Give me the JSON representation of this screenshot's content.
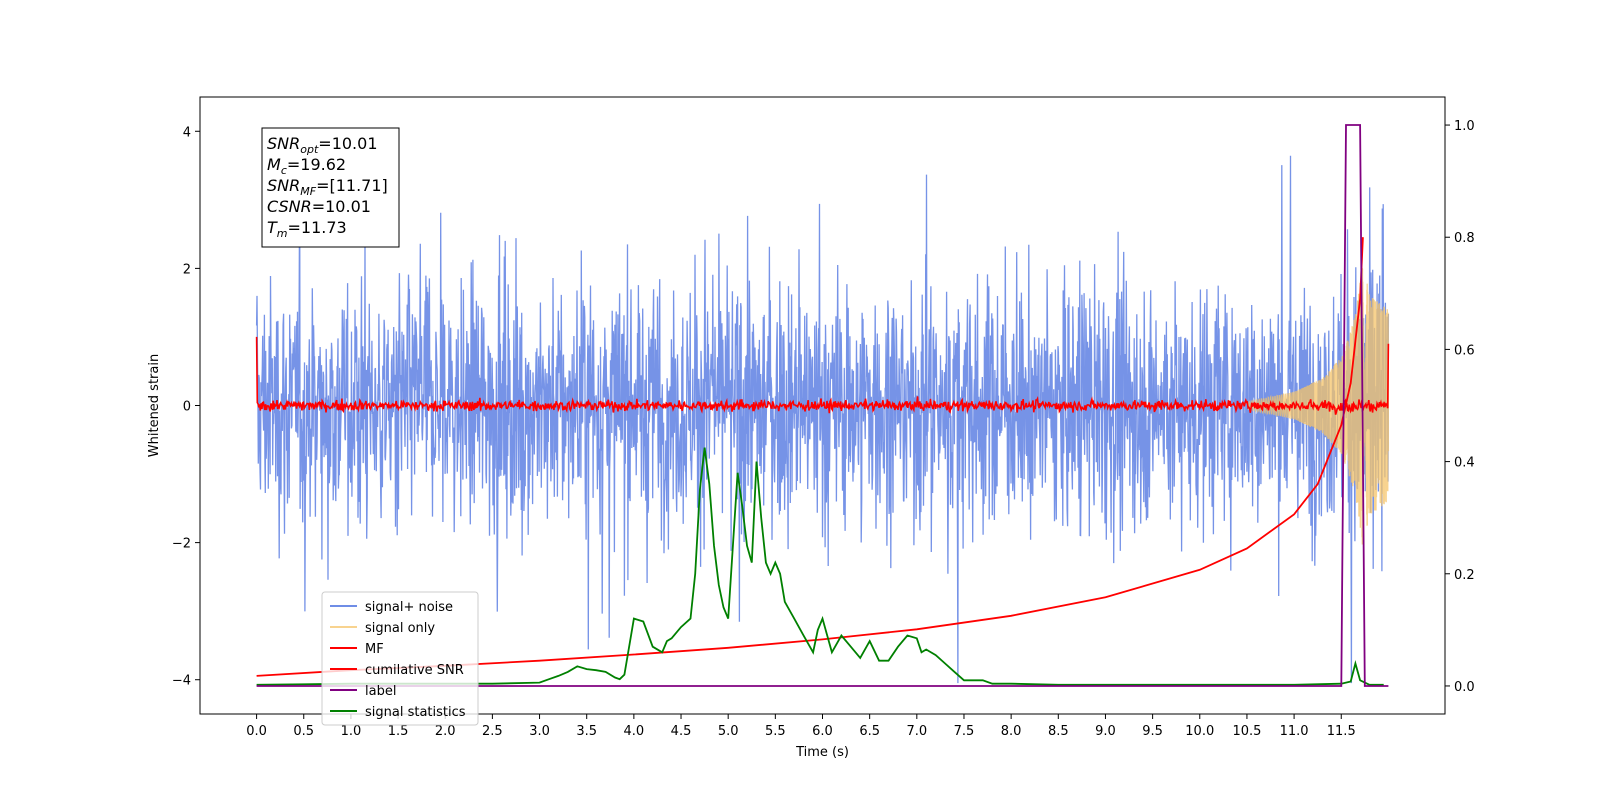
{
  "chart_data": {
    "type": "line",
    "xlabel": "Time (s)",
    "ylabel": "Whitened strain",
    "xlim": [
      -0.6,
      12.6
    ],
    "ylim": [
      -4.5,
      4.5
    ],
    "y2lim": [
      -0.05,
      1.05
    ],
    "x_ticks": [
      0.0,
      0.5,
      1.0,
      1.5,
      2.0,
      2.5,
      3.0,
      3.5,
      4.0,
      4.5,
      5.0,
      5.5,
      6.0,
      6.5,
      7.0,
      7.5,
      8.0,
      8.5,
      9.0,
      9.5,
      10.0,
      10.5,
      11.0,
      11.5
    ],
    "x_tick_labels": [
      "0.0",
      "0.5",
      "1.0",
      "1.5",
      "2.0",
      "2.5",
      "3.0",
      "3.5",
      "4.0",
      "4.5",
      "5.0",
      "5.5",
      "6.0",
      "6.5",
      "7.0",
      "7.5",
      "8.0",
      "8.5",
      "9.0",
      "9.5",
      "10.0",
      "10.5",
      "11.0",
      "11.5"
    ],
    "y_ticks": [
      -4,
      -2,
      0,
      2,
      4
    ],
    "y_tick_labels": [
      "−4",
      "−2",
      "0",
      "2",
      "4"
    ],
    "y2_ticks": [
      0.0,
      0.2,
      0.4,
      0.6,
      0.8,
      1.0
    ],
    "y2_tick_labels": [
      "0.0",
      "0.2",
      "0.4",
      "0.6",
      "0.8",
      "1.0"
    ],
    "grid": false,
    "legend_position": "lower-left",
    "annotations": {
      "snr_opt": "10.01",
      "mc": "19.62",
      "snr_mf": "[11.71]",
      "csnr": "10.01",
      "tm": "11.73"
    },
    "series": [
      {
        "name": "signal+ noise",
        "axis": "left",
        "color": "#6f8de6",
        "style": "dense noise band, approx ±2 with spikes to ±4",
        "x_range": [
          0.0,
          12.0
        ],
        "envelope": [
          [
            0.0,
            2.0
          ],
          [
            11.5,
            2.0
          ],
          [
            11.65,
            2.7
          ],
          [
            12.0,
            2.5
          ]
        ]
      },
      {
        "name": "signal only",
        "axis": "left",
        "color": "#f5c46a",
        "envelope": [
          [
            10.5,
            0.05
          ],
          [
            11.0,
            0.2
          ],
          [
            11.3,
            0.4
          ],
          [
            11.5,
            0.7
          ],
          [
            11.65,
            1.3
          ],
          [
            11.73,
            2.1
          ],
          [
            11.8,
            1.6
          ],
          [
            12.0,
            1.4
          ]
        ]
      },
      {
        "name": "MF",
        "axis": "left",
        "color": "#ff0000",
        "style": "noisy band near 0, approx ±0.2",
        "x_range": [
          0.0,
          12.0
        ],
        "endpoints": [
          [
            0.0,
            1.0
          ],
          [
            12.0,
            0.9
          ]
        ]
      },
      {
        "name": "cumilative SNR",
        "axis": "right",
        "color": "#ff0000",
        "x": [
          0.0,
          1.0,
          2.0,
          3.0,
          4.0,
          5.0,
          6.0,
          7.0,
          8.0,
          9.0,
          10.0,
          10.5,
          11.0,
          11.25,
          11.5,
          11.6,
          11.7,
          11.73
        ],
        "values": [
          0.018,
          0.028,
          0.036,
          0.045,
          0.056,
          0.068,
          0.083,
          0.101,
          0.125,
          0.158,
          0.207,
          0.245,
          0.306,
          0.36,
          0.465,
          0.54,
          0.69,
          0.8
        ]
      },
      {
        "name": "label",
        "axis": "right",
        "color": "#800080",
        "x": [
          0.0,
          11.5,
          11.55,
          11.7,
          11.75,
          12.0
        ],
        "values": [
          0.0,
          0.0,
          1.0,
          1.0,
          0.0,
          0.0
        ]
      },
      {
        "name": "signal statistics",
        "axis": "right",
        "color": "#008000",
        "x": [
          0.0,
          0.5,
          1.0,
          1.5,
          2.0,
          2.5,
          3.0,
          3.1,
          3.2,
          3.3,
          3.4,
          3.5,
          3.6,
          3.7,
          3.8,
          3.85,
          3.9,
          4.0,
          4.1,
          4.2,
          4.3,
          4.35,
          4.4,
          4.5,
          4.6,
          4.65,
          4.7,
          4.75,
          4.8,
          4.85,
          4.9,
          4.95,
          5.0,
          5.05,
          5.1,
          5.15,
          5.2,
          5.25,
          5.3,
          5.35,
          5.4,
          5.45,
          5.5,
          5.55,
          5.6,
          5.7,
          5.8,
          5.9,
          5.95,
          6.0,
          6.1,
          6.2,
          6.3,
          6.4,
          6.5,
          6.6,
          6.7,
          6.8,
          6.9,
          7.0,
          7.05,
          7.1,
          7.2,
          7.3,
          7.4,
          7.5,
          7.6,
          7.7,
          7.8,
          8.0,
          8.5,
          9.0,
          10.0,
          10.5,
          11.0,
          11.5,
          11.6,
          11.65,
          11.7,
          11.8,
          11.9,
          11.95
        ],
        "values": [
          0.002,
          0.003,
          0.004,
          0.004,
          0.004,
          0.004,
          0.006,
          0.012,
          0.018,
          0.025,
          0.035,
          0.03,
          0.028,
          0.025,
          0.015,
          0.012,
          0.02,
          0.12,
          0.115,
          0.07,
          0.06,
          0.08,
          0.085,
          0.105,
          0.12,
          0.2,
          0.35,
          0.425,
          0.36,
          0.25,
          0.18,
          0.14,
          0.12,
          0.25,
          0.38,
          0.32,
          0.25,
          0.22,
          0.4,
          0.3,
          0.22,
          0.2,
          0.22,
          0.2,
          0.15,
          0.12,
          0.09,
          0.06,
          0.1,
          0.12,
          0.06,
          0.09,
          0.07,
          0.05,
          0.08,
          0.045,
          0.045,
          0.07,
          0.09,
          0.085,
          0.06,
          0.065,
          0.055,
          0.04,
          0.025,
          0.01,
          0.01,
          0.01,
          0.004,
          0.004,
          0.002,
          0.002,
          0.002,
          0.002,
          0.002,
          0.004,
          0.008,
          0.04,
          0.01,
          0.002,
          0.002,
          0.002
        ]
      }
    ]
  }
}
